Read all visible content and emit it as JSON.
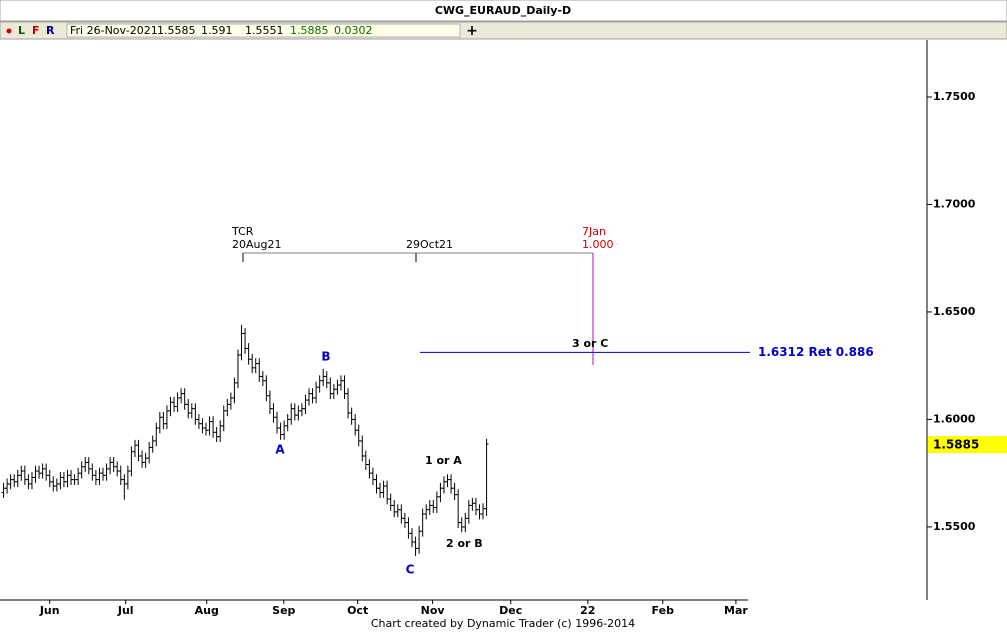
{
  "chart_data": {
    "type": "ohlc",
    "title": "CWG_EURAUD_Daily-D",
    "toolbar": {
      "buttons": [
        "L",
        "F",
        "R"
      ],
      "plus": "+"
    },
    "info": {
      "date": "Fri 26-Nov-2021",
      "open": 1.5585,
      "high": 1.591,
      "low": 1.5551,
      "close": 1.5885,
      "change": 0.0302
    },
    "footer": "Chart created by Dynamic Trader  (c) 1996-2014",
    "color": "#000000",
    "ylim": [
      1.516,
      1.7765
    ],
    "yticks": [
      {
        "value": 1.75,
        "label": "1.7500"
      },
      {
        "value": 1.7,
        "label": "1.7000"
      },
      {
        "value": 1.65,
        "label": "1.6500"
      },
      {
        "value": 1.6,
        "label": "1.6000"
      },
      {
        "value": 1.55,
        "label": "1.5500"
      }
    ],
    "xlim": [
      -1,
      260
    ],
    "xticks": [
      {
        "value": 13,
        "label": "Jun"
      },
      {
        "value": 34.4,
        "label": "Jul"
      },
      {
        "value": 57.2,
        "label": "Aug"
      },
      {
        "value": 78.9,
        "label": "Sep"
      },
      {
        "value": 99.7,
        "label": "Oct"
      },
      {
        "value": 120.8,
        "label": "Nov"
      },
      {
        "value": 142.8,
        "label": "Dec"
      },
      {
        "value": 164.5,
        "label": "22"
      },
      {
        "value": 185.6,
        "label": "Feb"
      },
      {
        "value": 206.2,
        "label": "Mar"
      }
    ],
    "last_price": 1.5885,
    "retracement": {
      "value": 1.6312,
      "label": "1.6312 Ret 0.886",
      "color": "#0000cc"
    },
    "annotations": {
      "tcr": "TCR",
      "tcr_date": "20Aug21",
      "mid_date": "29Oct21",
      "target_date": "7Jan",
      "target_ratio": "1.000",
      "wave_3c": "3 or C",
      "wave_a": "A",
      "wave_b": "B",
      "wave_c": "C",
      "wave_1a": "1 or A",
      "wave_2b": "2 or B"
    },
    "ohlc": [
      [
        1.566,
        1.5705,
        1.5635,
        1.568
      ],
      [
        1.568,
        1.5725,
        1.5655,
        1.57
      ],
      [
        1.57,
        1.5745,
        1.5675,
        1.572
      ],
      [
        1.572,
        1.5745,
        1.5685,
        1.571
      ],
      [
        1.571,
        1.5765,
        1.5685,
        1.574
      ],
      [
        1.574,
        1.5785,
        1.5715,
        1.576
      ],
      [
        1.576,
        1.5785,
        1.5695,
        1.572
      ],
      [
        1.572,
        1.5745,
        1.5675,
        1.57
      ],
      [
        1.57,
        1.5755,
        1.5675,
        1.573
      ],
      [
        1.573,
        1.5785,
        1.5705,
        1.576
      ],
      [
        1.576,
        1.5785,
        1.5725,
        1.575
      ],
      [
        1.575,
        1.5795,
        1.5725,
        1.577
      ],
      [
        1.577,
        1.5795,
        1.5715,
        1.574
      ],
      [
        1.574,
        1.5765,
        1.5685,
        1.571
      ],
      [
        1.571,
        1.5735,
        1.5665,
        1.569
      ],
      [
        1.569,
        1.5725,
        1.5665,
        1.57
      ],
      [
        1.57,
        1.5755,
        1.5675,
        1.573
      ],
      [
        1.573,
        1.5755,
        1.5685,
        1.571
      ],
      [
        1.571,
        1.5765,
        1.5685,
        1.574
      ],
      [
        1.574,
        1.5765,
        1.5695,
        1.572
      ],
      [
        1.572,
        1.5745,
        1.5695,
        1.572
      ],
      [
        1.572,
        1.5775,
        1.5695,
        1.575
      ],
      [
        1.575,
        1.5805,
        1.5725,
        1.578
      ],
      [
        1.578,
        1.5825,
        1.5755,
        1.58
      ],
      [
        1.58,
        1.5825,
        1.5745,
        1.577
      ],
      [
        1.577,
        1.5795,
        1.5715,
        1.574
      ],
      [
        1.574,
        1.5765,
        1.5695,
        1.572
      ],
      [
        1.572,
        1.5775,
        1.5695,
        1.575
      ],
      [
        1.575,
        1.5775,
        1.5715,
        1.574
      ],
      [
        1.574,
        1.5795,
        1.5715,
        1.577
      ],
      [
        1.577,
        1.5825,
        1.5745,
        1.58
      ],
      [
        1.58,
        1.5825,
        1.5755,
        1.578
      ],
      [
        1.578,
        1.5805,
        1.5735,
        1.576
      ],
      [
        1.576,
        1.5785,
        1.5695,
        1.572
      ],
      [
        1.572,
        1.5745,
        1.5626,
        1.57
      ],
      [
        1.57,
        1.5785,
        1.5675,
        1.576
      ],
      [
        1.576,
        1.5875,
        1.5735,
        1.585
      ],
      [
        1.585,
        1.5905,
        1.5825,
        1.588
      ],
      [
        1.588,
        1.5905,
        1.5805,
        1.583
      ],
      [
        1.583,
        1.5855,
        1.5775,
        1.58
      ],
      [
        1.58,
        1.5845,
        1.5775,
        1.582
      ],
      [
        1.582,
        1.5895,
        1.5795,
        1.587
      ],
      [
        1.587,
        1.5925,
        1.5845,
        1.59
      ],
      [
        1.59,
        1.5985,
        1.5875,
        1.596
      ],
      [
        1.596,
        1.6035,
        1.5935,
        1.601
      ],
      [
        1.601,
        1.6035,
        1.5955,
        1.598
      ],
      [
        1.598,
        1.6065,
        1.5955,
        1.604
      ],
      [
        1.604,
        1.6105,
        1.6015,
        1.608
      ],
      [
        1.608,
        1.6105,
        1.6035,
        1.606
      ],
      [
        1.606,
        1.6125,
        1.6035,
        1.61
      ],
      [
        1.61,
        1.6145,
        1.6075,
        1.612
      ],
      [
        1.612,
        1.6145,
        1.6045,
        1.607
      ],
      [
        1.607,
        1.6095,
        1.6005,
        1.603
      ],
      [
        1.603,
        1.6075,
        1.6005,
        1.605
      ],
      [
        1.605,
        1.6075,
        1.5975,
        1.6
      ],
      [
        1.6,
        1.6025,
        1.5955,
        1.598
      ],
      [
        1.598,
        1.6005,
        1.5935,
        1.596
      ],
      [
        1.596,
        1.5985,
        1.5925,
        1.595
      ],
      [
        1.595,
        1.6015,
        1.5925,
        1.599
      ],
      [
        1.599,
        1.6015,
        1.5915,
        1.594
      ],
      [
        1.594,
        1.5965,
        1.5895,
        1.592
      ],
      [
        1.592,
        1.5995,
        1.5895,
        1.597
      ],
      [
        1.597,
        1.6065,
        1.5945,
        1.604
      ],
      [
        1.604,
        1.6095,
        1.6015,
        1.607
      ],
      [
        1.607,
        1.6125,
        1.6045,
        1.61
      ],
      [
        1.61,
        1.6195,
        1.6075,
        1.617
      ],
      [
        1.617,
        1.6325,
        1.6145,
        1.63
      ],
      [
        1.63,
        1.644,
        1.6275,
        1.64
      ],
      [
        1.64,
        1.6425,
        1.6305,
        1.633
      ],
      [
        1.633,
        1.6355,
        1.6255,
        1.628
      ],
      [
        1.628,
        1.6305,
        1.6215,
        1.624
      ],
      [
        1.624,
        1.6285,
        1.6215,
        1.626
      ],
      [
        1.626,
        1.6285,
        1.6175,
        1.62
      ],
      [
        1.62,
        1.6225,
        1.6155,
        1.618
      ],
      [
        1.618,
        1.6205,
        1.6085,
        1.611
      ],
      [
        1.611,
        1.6135,
        1.6025,
        1.605
      ],
      [
        1.605,
        1.6075,
        1.5985,
        1.601
      ],
      [
        1.601,
        1.6035,
        1.5935,
        1.596
      ],
      [
        1.596,
        1.5985,
        1.5905,
        1.593
      ],
      [
        1.593,
        1.5995,
        1.5905,
        1.597
      ],
      [
        1.597,
        1.6025,
        1.5945,
        1.6
      ],
      [
        1.6,
        1.6075,
        1.5975,
        1.605
      ],
      [
        1.605,
        1.6075,
        1.5995,
        1.602
      ],
      [
        1.602,
        1.6065,
        1.5995,
        1.604
      ],
      [
        1.604,
        1.6075,
        1.6015,
        1.605
      ],
      [
        1.605,
        1.6115,
        1.6025,
        1.609
      ],
      [
        1.609,
        1.6145,
        1.6065,
        1.612
      ],
      [
        1.612,
        1.6145,
        1.6075,
        1.61
      ],
      [
        1.61,
        1.6175,
        1.6075,
        1.615
      ],
      [
        1.615,
        1.6205,
        1.6125,
        1.618
      ],
      [
        1.618,
        1.6235,
        1.6155,
        1.62
      ],
      [
        1.62,
        1.6225,
        1.6145,
        1.617
      ],
      [
        1.617,
        1.6195,
        1.6095,
        1.612
      ],
      [
        1.612,
        1.6165,
        1.6095,
        1.614
      ],
      [
        1.614,
        1.6185,
        1.6115,
        1.616
      ],
      [
        1.616,
        1.6205,
        1.6135,
        1.618
      ],
      [
        1.618,
        1.6205,
        1.6095,
        1.612
      ],
      [
        1.612,
        1.6145,
        1.6005,
        1.603
      ],
      [
        1.603,
        1.6055,
        1.5975,
        1.6
      ],
      [
        1.6,
        1.6025,
        1.5925,
        1.595
      ],
      [
        1.595,
        1.5975,
        1.5875,
        1.59
      ],
      [
        1.59,
        1.5925,
        1.5805,
        1.583
      ],
      [
        1.583,
        1.5855,
        1.5765,
        1.579
      ],
      [
        1.579,
        1.5815,
        1.5725,
        1.575
      ],
      [
        1.575,
        1.5775,
        1.5695,
        1.572
      ],
      [
        1.572,
        1.5745,
        1.5655,
        1.568
      ],
      [
        1.568,
        1.5705,
        1.5635,
        1.566
      ],
      [
        1.566,
        1.5715,
        1.5635,
        1.569
      ],
      [
        1.569,
        1.5715,
        1.5605,
        1.563
      ],
      [
        1.563,
        1.5655,
        1.5575,
        1.56
      ],
      [
        1.56,
        1.5625,
        1.5545,
        1.557
      ],
      [
        1.557,
        1.5605,
        1.5545,
        1.558
      ],
      [
        1.558,
        1.5605,
        1.5515,
        1.554
      ],
      [
        1.554,
        1.5565,
        1.5495,
        1.552
      ],
      [
        1.552,
        1.5545,
        1.5445,
        1.547
      ],
      [
        1.547,
        1.5495,
        1.5405,
        1.543
      ],
      [
        1.543,
        1.5455,
        1.5365,
        1.54
      ],
      [
        1.54,
        1.5505,
        1.5375,
        1.548
      ],
      [
        1.548,
        1.5585,
        1.5455,
        1.556
      ],
      [
        1.556,
        1.5605,
        1.5535,
        1.558
      ],
      [
        1.558,
        1.5625,
        1.5555,
        1.56
      ],
      [
        1.56,
        1.5625,
        1.5565,
        1.559
      ],
      [
        1.559,
        1.5665,
        1.5565,
        1.564
      ],
      [
        1.564,
        1.5705,
        1.5615,
        1.568
      ],
      [
        1.568,
        1.5735,
        1.5655,
        1.571
      ],
      [
        1.571,
        1.5745,
        1.5685,
        1.572
      ],
      [
        1.572,
        1.5745,
        1.5655,
        1.568
      ],
      [
        1.568,
        1.5705,
        1.5625,
        1.565
      ],
      [
        1.565,
        1.5675,
        1.5495,
        1.552
      ],
      [
        1.552,
        1.5545,
        1.5475,
        1.55
      ],
      [
        1.55,
        1.5565,
        1.5475,
        1.554
      ],
      [
        1.554,
        1.5625,
        1.5515,
        1.56
      ],
      [
        1.56,
        1.5635,
        1.5575,
        1.561
      ],
      [
        1.561,
        1.5635,
        1.5555,
        1.558
      ],
      [
        1.558,
        1.5605,
        1.5535,
        1.556
      ],
      [
        1.556,
        1.561,
        1.5535,
        1.5585
      ],
      [
        1.5585,
        1.591,
        1.5551,
        1.5885
      ]
    ]
  }
}
